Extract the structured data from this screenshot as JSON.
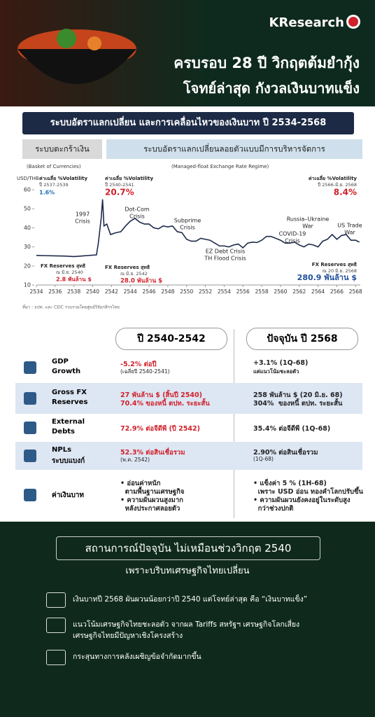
{
  "header": {
    "brand": "KResearch",
    "title_line1": "ครบรอบ 28 ปี วิกฤตต้มยำกุ้ง",
    "title_line2": "โจทย์ล่าสุด กังวลเงินบาทแข็ง"
  },
  "section_title": "ระบบอัตราแลกเปลี่ยน และการเคลื่อนไหวของเงินบาท ปี 2534-2568",
  "regimes": [
    {
      "name": "ระบบตะกร้าเงิน",
      "note": "(Basket of Currencies)"
    },
    {
      "name": "ระบบอัตราแลกเปลี่ยนลอยตัวแบบมีการบริหารจัดการ",
      "note": "(Managed-float Exchange Rate Regime)"
    }
  ],
  "chart_data": {
    "type": "line",
    "y_axis_label": "USD/THB",
    "color": "#1e2a4a",
    "x": [
      2534,
      2535,
      2536,
      2537,
      2538,
      2539,
      2540.4,
      2540.6,
      2540.9,
      2541.05,
      2541.2,
      2541.5,
      2541.9,
      2542.5,
      2543,
      2543.5,
      2544,
      2544.5,
      2545,
      2545.5,
      2546,
      2546.5,
      2547,
      2547.5,
      2548,
      2548.5,
      2549,
      2549.5,
      2550,
      2550.5,
      2551,
      2551.5,
      2552,
      2552.5,
      2553,
      2553.5,
      2554,
      2554.5,
      2555,
      2555.5,
      2556,
      2556.5,
      2557,
      2557.5,
      2558,
      2558.5,
      2559,
      2560,
      2560.5,
      2561,
      2561.5,
      2562,
      2562.5,
      2563,
      2563.5,
      2564,
      2564.5,
      2565,
      2565.5,
      2566,
      2566.5,
      2567,
      2567.5,
      2568,
      2568.4
    ],
    "values": [
      25.5,
      25.4,
      25.3,
      25.2,
      24.9,
      25.3,
      25.8,
      32,
      45,
      55,
      41,
      42,
      36.5,
      37.5,
      38,
      41,
      43.5,
      45,
      43,
      42,
      42,
      40,
      39.5,
      41,
      40.5,
      41,
      38,
      37.5,
      34,
      33,
      33,
      34.5,
      34,
      33.5,
      32,
      30.5,
      30.5,
      30,
      31,
      31.5,
      29.5,
      32,
      32.5,
      32.3,
      33.5,
      35.5,
      35.5,
      33.5,
      32,
      32,
      32.5,
      31,
      30,
      31.5,
      31,
      30,
      33,
      34,
      36.5,
      34,
      36,
      36.5,
      33.5,
      33.5,
      32.5
    ],
    "xlim": [
      2534,
      2568.5
    ],
    "xticks": [
      2534,
      2536,
      2538,
      2540,
      2542,
      2544,
      2546,
      2548,
      2550,
      2552,
      2554,
      2556,
      2558,
      2560,
      2562,
      2564,
      2566,
      2568
    ],
    "ylim": [
      10,
      62
    ],
    "yticks": [
      10,
      20,
      30,
      40,
      50,
      60
    ],
    "annotations": [
      [
        "1997",
        "Crisis"
      ],
      [
        "Dot-Com",
        "Crisis"
      ],
      [
        "Subprime",
        "Crisis"
      ],
      [
        "EZ Debt Crisis",
        "TH Flood Crisis"
      ],
      [
        "COVID-19",
        "Crisis"
      ],
      [
        "Russia–Ukraine",
        "War"
      ],
      [
        "US Trade",
        "War"
      ]
    ],
    "volatility": [
      {
        "label": "ค่าเฉลี่ย %Volatility",
        "period": "ปี 2537-2539",
        "value": "1.6%"
      },
      {
        "label": "ค่าเฉลี่ย %Volatility",
        "period": "ปี 2540-2541",
        "value": "20.7%"
      },
      {
        "label": "ค่าเฉลี่ย %Volatility",
        "period": "ปี 2566-มิ.ย. 2568",
        "value": "8.4%"
      }
    ],
    "reserves": [
      {
        "label": "FX Reserves สุทธิ",
        "date": "ณ มิ.ย. 2540",
        "value": "2.8 พันล้าน $"
      },
      {
        "label": "FX Reserves สุทธิ",
        "date": "ณ มิ.ย. 2542",
        "value": "28.0 พันล้าน $"
      },
      {
        "label": "FX Reserves สุทธิ",
        "date": "ณ 20 มิ.ย. 2568",
        "value": "280.9 พันล้าน $"
      }
    ],
    "source": "ที่มา : ธปท. และ CEIC รวบรวมโดยศูนย์วิจัยกสิกรไทย"
  },
  "table": {
    "headers": [
      "ปี 2540-2542",
      "ปัจจุบัน ปี 2568"
    ],
    "rows": [
      {
        "label": [
          "GDP",
          "Growth"
        ],
        "past": [
          "-5.2% ต่อปี",
          "(เฉลี่ยปี 2540-2541)"
        ],
        "now": [
          "+3.1% (1Q-68)",
          "แต่แนวโน้มชะลอตัว"
        ]
      },
      {
        "label": [
          "Gross FX",
          "Reserves"
        ],
        "past": [
          "27 พันล้าน $ (สิ้นปี 2540)",
          "70.4% ของหนี้ ตปท. ระยะสั้น"
        ],
        "now": [
          "258 พันล้าน $ (20 มิ.ย. 68)",
          "304%  ของหนี้ ตปท. ระยะสั้น"
        ]
      },
      {
        "label": [
          "External",
          "Debts"
        ],
        "past": [
          "72.9% ต่อจีดีพี (ปี 2542)"
        ],
        "now": [
          "35.4% ต่อจีดีพี (1Q-68)"
        ]
      },
      {
        "label": [
          "NPLs",
          "ระบบแบงก์"
        ],
        "past": [
          "52.3% ต่อสินเชื่อรวม",
          "(พ.ค. 2542)"
        ],
        "now": [
          "2.90% ต่อสินเชื่อรวม",
          "(1Q-68)"
        ]
      },
      {
        "label": [
          "ค่าเงินบาท"
        ],
        "past": [
          "• อ่อนค่าหนัก",
          "  ตามพื้นฐานเศรษฐกิจ",
          "• ความผันผวนสูงมาก",
          "  หลังประกาศลอยตัว"
        ],
        "now": [
          "• แข็งค่า 5 % (1H-68)",
          "  เพราะ USD อ่อน ทองคำโลกปรับขึ้น",
          "• ความผันผวนยังคงอยู่ในระดับสูง",
          "  กว่าช่วงปกติ"
        ]
      }
    ]
  },
  "footer": {
    "headline": "สถานการณ์ปัจจุบัน ไม่เหมือนช่วงวิกฤต 2540",
    "subheadline": "เพราะบริบทเศรษฐกิจไทยเปลี่ยน",
    "points": [
      [
        "เงินบาทปี 2568 ผันผวนน้อยกว่าปี 2540 แต่โจทย์ล่าสุด คือ “เงินบาทแข็ง”"
      ],
      [
        "แนวโน้มเศรษฐกิจไทยชะลอตัว จากผล Tariffs สหรัฐฯ เศรษฐกิจโลกเสี่ยง",
        "เศรษฐกิจไทยมีปัญหาเชิงโครงสร้าง"
      ],
      [
        "กระสุนทางการคลังเผชิญข้อจำกัดมากขึ้น"
      ]
    ]
  }
}
